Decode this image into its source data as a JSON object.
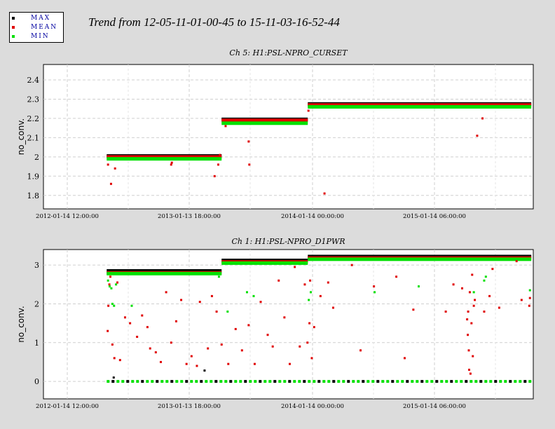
{
  "main_title": "Trend from 12-05-11-01-00-45 to 15-11-03-16-52-44",
  "legend": [
    {
      "label": "MAX",
      "color": "#000000"
    },
    {
      "label": "MEAN",
      "color": "#e00000"
    },
    {
      "label": "MIN",
      "color": "#00e000"
    }
  ],
  "chart_data": [
    {
      "type": "scatter",
      "title": "Ch 5: H1:PSL-NPRO_CURSET",
      "ylabel": "no_conv.",
      "xlabel": "",
      "x_ticks": [
        "2012-01-14 12:00:00",
        "2013-01-13 18:00:00",
        "2014-01-14 00:00:00",
        "2015-01-14 06:00:00"
      ],
      "ylim": [
        1.73,
        2.48
      ],
      "y_ticks": [
        1.8,
        1.9,
        2,
        2.1,
        2.2,
        2.3,
        2.4
      ],
      "y_tick_labels": [
        "1.8",
        "1.9",
        "2",
        "2.1",
        "2.2",
        "2.3",
        "2.4"
      ],
      "grid": true,
      "series": [
        {
          "name": "MAX",
          "color": "#000000",
          "segments": [
            {
              "from": "2012-05-11",
              "to": "2013-04-20",
              "value": 2.005
            },
            {
              "from": "2013-04-20",
              "to": "2014-01-03",
              "value": 2.195
            },
            {
              "from": "2014-01-03",
              "to": "2015-11-03",
              "value": 2.275
            }
          ],
          "points": []
        },
        {
          "name": "MEAN",
          "color": "#e00000",
          "segments": [
            {
              "from": "2012-05-11",
              "to": "2013-04-20",
              "value": 2.0
            },
            {
              "from": "2013-04-20",
              "to": "2014-01-03",
              "value": 2.19
            },
            {
              "from": "2014-01-03",
              "to": "2015-11-03",
              "value": 2.27
            }
          ],
          "points": [
            {
              "x": "2012-05-15",
              "y": 1.96
            },
            {
              "x": "2012-05-24",
              "y": 1.86
            },
            {
              "x": "2012-06-05",
              "y": 1.94
            },
            {
              "x": "2012-11-20",
              "y": 1.96
            },
            {
              "x": "2012-11-22",
              "y": 1.97
            },
            {
              "x": "2013-03-30",
              "y": 1.9
            },
            {
              "x": "2013-04-10",
              "y": 1.96
            },
            {
              "x": "2013-04-15",
              "y": 2.01
            },
            {
              "x": "2013-05-02",
              "y": 2.16
            },
            {
              "x": "2013-07-10",
              "y": 2.08
            },
            {
              "x": "2013-07-12",
              "y": 1.96
            },
            {
              "x": "2014-01-05",
              "y": 2.24
            },
            {
              "x": "2014-02-22",
              "y": 1.81
            },
            {
              "x": "2015-05-25",
              "y": 2.11
            },
            {
              "x": "2015-06-10",
              "y": 2.2
            }
          ]
        },
        {
          "name": "MIN",
          "color": "#00e000",
          "segments": [
            {
              "from": "2012-05-11",
              "to": "2013-04-20",
              "value": 1.99
            },
            {
              "from": "2013-04-20",
              "to": "2014-01-03",
              "value": 2.175
            },
            {
              "from": "2014-01-03",
              "to": "2015-11-03",
              "value": 2.26
            }
          ],
          "points": []
        }
      ]
    },
    {
      "type": "scatter",
      "title": "Ch 1: H1:PSL-NPRO_D1PWR",
      "ylabel": "no_conv.",
      "xlabel": "",
      "x_ticks": [
        "2012-01-14 12:00:00",
        "2013-01-13 18:00:00",
        "2014-01-14 00:00:00",
        "2015-01-14 06:00:00"
      ],
      "ylim": [
        -0.45,
        3.4
      ],
      "y_ticks": [
        0,
        1,
        2,
        3
      ],
      "y_tick_labels": [
        "0",
        "1",
        "2",
        "3"
      ],
      "grid": true,
      "series": [
        {
          "name": "MAX",
          "color": "#000000",
          "segments": [
            {
              "from": "2012-05-11",
              "to": "2013-04-20",
              "value": 2.85
            },
            {
              "from": "2013-04-20",
              "to": "2014-01-03",
              "value": 3.12
            },
            {
              "from": "2014-01-03",
              "to": "2015-11-03",
              "value": 3.22
            }
          ],
          "points": [
            {
              "x": "2013-02-28",
              "y": 0.28
            },
            {
              "x": "2012-06-01",
              "y": 0.1
            }
          ]
        },
        {
          "name": "MEAN",
          "color": "#e00000",
          "segments": [
            {
              "from": "2012-05-11",
              "to": "2013-04-20",
              "value": 2.8
            },
            {
              "from": "2013-04-20",
              "to": "2014-01-03",
              "value": 3.08
            },
            {
              "from": "2014-01-03",
              "to": "2015-11-03",
              "value": 3.18
            }
          ],
          "points": [
            {
              "x": "2012-05-14",
              "y": 1.3
            },
            {
              "x": "2012-05-16",
              "y": 1.95
            },
            {
              "x": "2012-05-19",
              "y": 2.5
            },
            {
              "x": "2012-05-22",
              "y": 2.7
            },
            {
              "x": "2012-05-28",
              "y": 0.95
            },
            {
              "x": "2012-06-03",
              "y": 0.6
            },
            {
              "x": "2012-06-12",
              "y": 2.55
            },
            {
              "x": "2012-06-20",
              "y": 0.55
            },
            {
              "x": "2012-07-05",
              "y": 1.65
            },
            {
              "x": "2012-07-20",
              "y": 1.5
            },
            {
              "x": "2012-08-10",
              "y": 1.15
            },
            {
              "x": "2012-08-25",
              "y": 1.7
            },
            {
              "x": "2012-09-10",
              "y": 1.4
            },
            {
              "x": "2012-09-18",
              "y": 0.85
            },
            {
              "x": "2012-10-05",
              "y": 0.75
            },
            {
              "x": "2012-10-20",
              "y": 0.5
            },
            {
              "x": "2012-11-05",
              "y": 2.3
            },
            {
              "x": "2012-11-20",
              "y": 1.0
            },
            {
              "x": "2012-12-05",
              "y": 1.55
            },
            {
              "x": "2012-12-20",
              "y": 2.1
            },
            {
              "x": "2013-01-05",
              "y": 0.45
            },
            {
              "x": "2013-01-20",
              "y": 0.65
            },
            {
              "x": "2013-02-05",
              "y": 0.4
            },
            {
              "x": "2013-02-14",
              "y": 2.05
            },
            {
              "x": "2013-03-10",
              "y": 0.85
            },
            {
              "x": "2013-03-22",
              "y": 2.2
            },
            {
              "x": "2013-04-05",
              "y": 1.8
            },
            {
              "x": "2013-04-20",
              "y": 0.95
            },
            {
              "x": "2013-05-10",
              "y": 0.45
            },
            {
              "x": "2013-06-01",
              "y": 1.35
            },
            {
              "x": "2013-06-20",
              "y": 0.8
            },
            {
              "x": "2013-07-10",
              "y": 1.45
            },
            {
              "x": "2013-07-28",
              "y": 0.45
            },
            {
              "x": "2013-08-15",
              "y": 2.05
            },
            {
              "x": "2013-09-05",
              "y": 1.2
            },
            {
              "x": "2013-09-20",
              "y": 0.9
            },
            {
              "x": "2013-10-08",
              "y": 2.6
            },
            {
              "x": "2013-10-25",
              "y": 1.65
            },
            {
              "x": "2013-11-10",
              "y": 0.45
            },
            {
              "x": "2013-11-25",
              "y": 2.95
            },
            {
              "x": "2013-12-10",
              "y": 0.9
            },
            {
              "x": "2013-12-25",
              "y": 2.5
            },
            {
              "x": "2014-01-02",
              "y": 1.0
            },
            {
              "x": "2014-01-08",
              "y": 1.5
            },
            {
              "x": "2014-01-10",
              "y": 2.6
            },
            {
              "x": "2014-01-15",
              "y": 0.6
            },
            {
              "x": "2014-01-22",
              "y": 1.4
            },
            {
              "x": "2014-02-10",
              "y": 2.2
            },
            {
              "x": "2014-03-05",
              "y": 2.55
            },
            {
              "x": "2014-03-20",
              "y": 1.9
            },
            {
              "x": "2014-05-15",
              "y": 3.0
            },
            {
              "x": "2014-06-10",
              "y": 0.8
            },
            {
              "x": "2014-07-20",
              "y": 2.45
            },
            {
              "x": "2014-09-25",
              "y": 2.7
            },
            {
              "x": "2014-10-20",
              "y": 0.6
            },
            {
              "x": "2014-11-15",
              "y": 1.85
            },
            {
              "x": "2015-02-20",
              "y": 1.8
            },
            {
              "x": "2015-03-15",
              "y": 2.5
            },
            {
              "x": "2015-04-10",
              "y": 2.4
            },
            {
              "x": "2015-04-25",
              "y": 1.6
            },
            {
              "x": "2015-04-27",
              "y": 1.2
            },
            {
              "x": "2015-04-28",
              "y": 1.8
            },
            {
              "x": "2015-04-30",
              "y": 0.8
            },
            {
              "x": "2015-05-01",
              "y": 0.3
            },
            {
              "x": "2015-05-03",
              "y": 2.3
            },
            {
              "x": "2015-05-05",
              "y": 0.2
            },
            {
              "x": "2015-05-08",
              "y": 1.5
            },
            {
              "x": "2015-05-10",
              "y": 2.75
            },
            {
              "x": "2015-05-12",
              "y": 0.65
            },
            {
              "x": "2015-05-15",
              "y": 1.95
            },
            {
              "x": "2015-05-18",
              "y": 2.1
            },
            {
              "x": "2015-06-15",
              "y": 1.8
            },
            {
              "x": "2015-07-01",
              "y": 2.2
            },
            {
              "x": "2015-07-10",
              "y": 2.9
            },
            {
              "x": "2015-07-30",
              "y": 1.9
            },
            {
              "x": "2015-09-20",
              "y": 3.1
            },
            {
              "x": "2015-10-05",
              "y": 2.1
            },
            {
              "x": "2015-10-28",
              "y": 1.95
            },
            {
              "x": "2015-10-30",
              "y": 2.15
            }
          ]
        },
        {
          "name": "MIN",
          "color": "#00e000",
          "segments": [
            {
              "from": "2012-05-11",
              "to": "2013-04-20",
              "value": 2.78
            },
            {
              "from": "2013-04-20",
              "to": "2014-01-03",
              "value": 3.05
            },
            {
              "from": "2014-01-03",
              "to": "2015-11-03",
              "value": 3.15
            }
          ],
          "points": [
            {
              "x": "2012-05-15",
              "y": 2.6
            },
            {
              "x": "2012-05-20",
              "y": 2.45
            },
            {
              "x": "2012-05-25",
              "y": 2.4
            },
            {
              "x": "2012-05-28",
              "y": 2.0
            },
            {
              "x": "2012-06-02",
              "y": 1.95
            },
            {
              "x": "2012-06-08",
              "y": 2.5
            },
            {
              "x": "2012-07-25",
              "y": 1.95
            },
            {
              "x": "2013-04-12",
              "y": 2.7
            },
            {
              "x": "2013-05-08",
              "y": 1.8
            },
            {
              "x": "2013-07-05",
              "y": 2.3
            },
            {
              "x": "2013-07-25",
              "y": 2.2
            },
            {
              "x": "2014-01-06",
              "y": 2.1
            },
            {
              "x": "2014-01-12",
              "y": 2.3
            },
            {
              "x": "2014-07-22",
              "y": 2.3
            },
            {
              "x": "2014-12-01",
              "y": 2.45
            },
            {
              "x": "2015-05-15",
              "y": 2.3
            },
            {
              "x": "2015-06-15",
              "y": 2.6
            },
            {
              "x": "2015-06-20",
              "y": 2.7
            },
            {
              "x": "2015-10-30",
              "y": 2.35
            }
          ]
        }
      ],
      "zero_band": {
        "from": "2012-05-11",
        "to": "2015-11-03",
        "value": 0.0
      }
    }
  ]
}
